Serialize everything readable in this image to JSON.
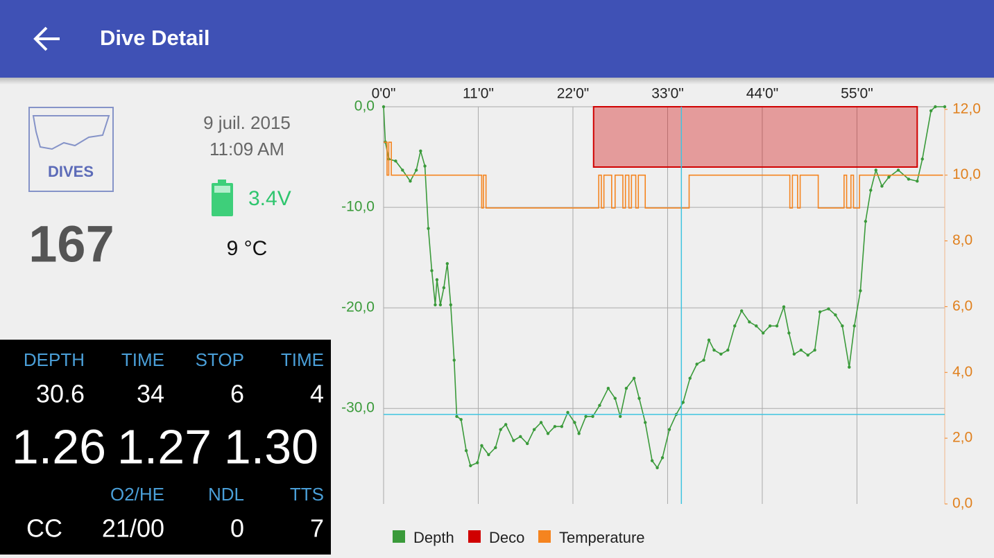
{
  "header": {
    "title": "Dive Detail"
  },
  "summary": {
    "logo_text": "DIVES",
    "dive_number": "167",
    "date": "9 juil. 2015",
    "time": "11:09 AM",
    "battery": "3.4V",
    "temperature": "9 °C"
  },
  "computer": {
    "row1_labels": [
      "DEPTH",
      "TIME",
      "STOP",
      "TIME"
    ],
    "row1_values": [
      "30.6",
      "34",
      "6",
      "4"
    ],
    "ppo2": [
      "1.26",
      "1.27",
      "1.30"
    ],
    "row2_labels": [
      "O2/HE",
      "NDL",
      "TTS"
    ],
    "row2_values": [
      "CC",
      "21/00",
      "0",
      "7"
    ]
  },
  "chart_data": {
    "type": "line",
    "grid": true,
    "xlim": [
      0,
      65.2
    ],
    "xticks": [
      {
        "value": 0,
        "label": "0'0\""
      },
      {
        "value": 11,
        "label": "11'0\""
      },
      {
        "value": 22,
        "label": "22'0\""
      },
      {
        "value": 33,
        "label": "33'0\""
      },
      {
        "value": 44,
        "label": "44'0\""
      },
      {
        "value": 55,
        "label": "55'0\""
      }
    ],
    "ylim": [
      -39.5,
      0
    ],
    "yticks": [
      {
        "value": 0,
        "label": "0,0"
      },
      {
        "value": -10,
        "label": "-10,0"
      },
      {
        "value": -20,
        "label": "-20,0"
      },
      {
        "value": -30,
        "label": "-30,0"
      }
    ],
    "y2lim": [
      0,
      12.08
    ],
    "y2ticks": [
      {
        "value": 0,
        "label": "0,0"
      },
      {
        "value": 2,
        "label": "2,0"
      },
      {
        "value": 4,
        "label": "4,0"
      },
      {
        "value": 6,
        "label": "6,0"
      },
      {
        "value": 8,
        "label": "8,0"
      },
      {
        "value": 10,
        "label": "10,0"
      },
      {
        "value": 12,
        "label": "12,0"
      }
    ],
    "crosshair": {
      "x": 34.6,
      "y": -30.6
    },
    "series": [
      {
        "name": "Depth",
        "color": "#3a9a3a",
        "markers": true,
        "x": [
          0,
          0.2,
          0.6,
          1.4,
          2.2,
          3.1,
          3.8,
          4.3,
          4.8,
          5.2,
          5.6,
          6.0,
          6.2,
          6.6,
          7.0,
          7.4,
          7.8,
          8.2,
          8.5,
          9.0,
          9.6,
          10.1,
          10.9,
          11.4,
          12.2,
          13.0,
          13.6,
          14.2,
          15.1,
          15.9,
          16.7,
          17.5,
          18.3,
          19.1,
          19.9,
          20.7,
          21.4,
          22.2,
          22.7,
          23.5,
          24.3,
          25.1,
          26.1,
          26.9,
          27.5,
          28.2,
          29.1,
          29.7,
          30.4,
          31.2,
          31.8,
          32.4,
          33.2,
          34.0,
          34.8,
          35.6,
          36.4,
          37.2,
          37.8,
          38.4,
          39.2,
          40.0,
          40.8,
          41.6,
          42.5,
          43.3,
          44.1,
          44.9,
          45.7,
          46.5,
          47.1,
          47.7,
          48.5,
          49.3,
          50.1,
          50.7,
          51.7,
          52.5,
          53.3,
          54.1,
          54.7,
          55.4,
          56.0,
          56.6,
          57.2,
          57.9,
          58.7,
          59.8,
          61.0,
          62.0,
          62.6,
          63.6,
          64.1,
          65.2
        ],
        "values": [
          0,
          -3.5,
          -5.2,
          -5.4,
          -6.3,
          -7.4,
          -6.3,
          -4.4,
          -5.9,
          -12.1,
          -16.3,
          -19.7,
          -17.2,
          -19.7,
          -18.0,
          -15.6,
          -19.7,
          -25.2,
          -30.8,
          -31.1,
          -34.2,
          -35.7,
          -35.4,
          -33.7,
          -34.6,
          -33.9,
          -32.1,
          -31.6,
          -33.2,
          -32.8,
          -33.5,
          -32.1,
          -31.4,
          -32.5,
          -31.8,
          -31.8,
          -30.4,
          -31.4,
          -32.5,
          -30.8,
          -30.8,
          -29.7,
          -28.0,
          -29.0,
          -30.8,
          -28.0,
          -27.0,
          -29.0,
          -31.4,
          -35.2,
          -35.9,
          -34.9,
          -32.1,
          -30.6,
          -29.4,
          -27.0,
          -25.6,
          -25.2,
          -23.2,
          -24.2,
          -24.6,
          -24.2,
          -21.8,
          -20.3,
          -21.4,
          -21.8,
          -22.5,
          -21.8,
          -21.8,
          -19.9,
          -22.5,
          -24.6,
          -24.2,
          -24.7,
          -24.2,
          -20.4,
          -20.1,
          -20.7,
          -21.8,
          -25.9,
          -21.8,
          -18.3,
          -11.4,
          -8.3,
          -6.3,
          -7.9,
          -7.0,
          -6.3,
          -7.2,
          -7.4,
          -5.2,
          -0.4,
          0,
          0
        ]
      },
      {
        "name": "Deco",
        "color": "#d00000",
        "area": true,
        "x": [
          24.4,
          24.4,
          62.0,
          62.0
        ],
        "values": [
          0,
          -6,
          -6,
          0
        ]
      },
      {
        "name": "Temperature",
        "color": "#f5841f",
        "axis": "y2",
        "step": true,
        "x": [
          0,
          0.4,
          0.6,
          0.9,
          11.4,
          11.6,
          11.9,
          25.0,
          25.3,
          25.6,
          26.5,
          26.9,
          27.8,
          28.1,
          28.5,
          28.8,
          29.3,
          29.6,
          30.4,
          35.5,
          47.2,
          47.5,
          48.1,
          48.4,
          50.5,
          53.5,
          53.8,
          54.3,
          54.6,
          55.3,
          65.0
        ],
        "values": [
          11,
          10,
          11,
          10,
          9,
          10,
          9,
          10,
          9,
          10,
          9,
          10,
          9,
          10,
          9,
          10,
          9,
          10,
          9,
          10,
          9,
          10,
          9,
          10,
          9,
          10,
          9,
          10,
          9,
          10,
          10
        ]
      }
    ]
  }
}
